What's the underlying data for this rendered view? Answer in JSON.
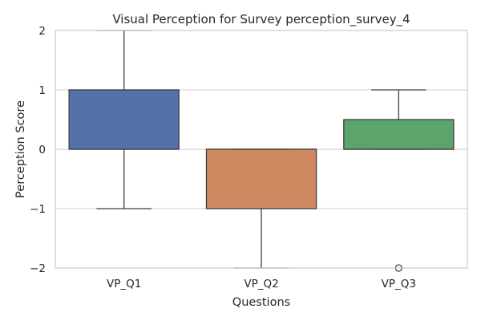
{
  "chart_data": {
    "type": "box",
    "title": "Visual Perception for Survey perception_survey_4",
    "xlabel": "Questions",
    "ylabel": "Perception Score",
    "ylim": [
      -2,
      2
    ],
    "yticks": [
      -2,
      -1,
      0,
      1,
      2
    ],
    "ytick_labels": [
      "−2",
      "−1",
      "0",
      "1",
      "2"
    ],
    "grid": "horizontal",
    "categories": [
      "VP_Q1",
      "VP_Q2",
      "VP_Q3"
    ],
    "series": [
      {
        "category": "VP_Q1",
        "whisker_low": -1,
        "q1": 0,
        "median": 0,
        "q3": 1,
        "whisker_high": 2,
        "outliers": [],
        "color": "#5471a8"
      },
      {
        "category": "VP_Q2",
        "whisker_low": -2,
        "q1": -1,
        "median": 0,
        "q3": 0,
        "whisker_high": 0,
        "outliers": [],
        "color": "#cf8960"
      },
      {
        "category": "VP_Q3",
        "whisker_low": 0,
        "q1": 0,
        "median": 0,
        "q3": 0.5,
        "whisker_high": 1,
        "outliers": [
          -2
        ],
        "color": "#5ca46c"
      }
    ]
  }
}
